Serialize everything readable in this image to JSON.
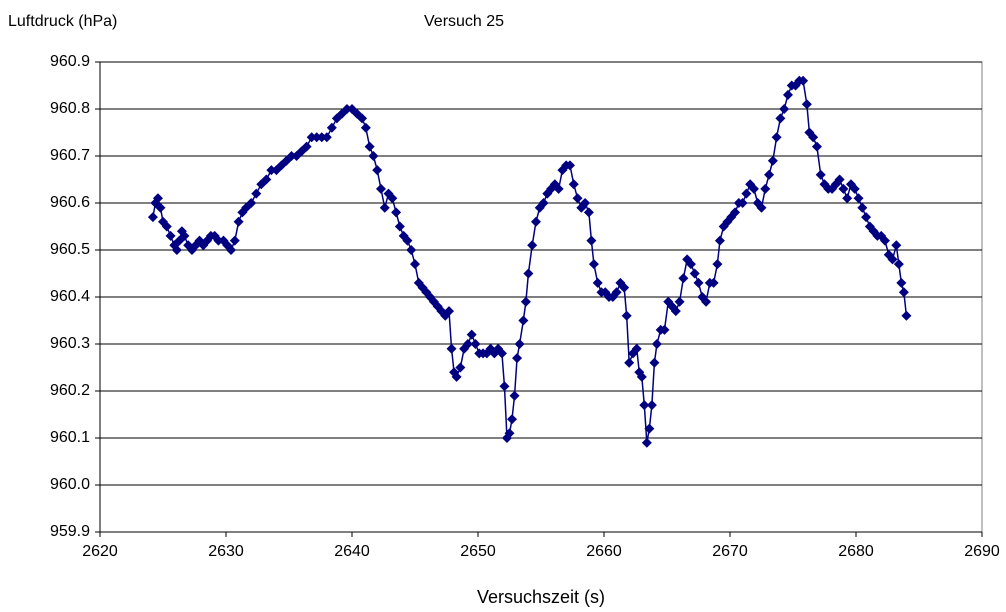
{
  "chart_data": {
    "type": "line",
    "title": "Versuch 25",
    "y_label": "Luftdruck (hPa)",
    "x_label": "Versuchszeit (s)",
    "xlim": [
      2620,
      2690
    ],
    "xticks": [
      2620,
      2630,
      2640,
      2650,
      2660,
      2670,
      2680,
      2690
    ],
    "ylim": [
      959.9,
      960.9
    ],
    "yticks": [
      959.9,
      {
        "value": 960,
        "label": "960.0"
      },
      960.1,
      960.2,
      960.3,
      960.4,
      960.5,
      960.6,
      960.7,
      960.8,
      960.9
    ],
    "grid": true,
    "marker": "diamond",
    "x": [
      2624.2,
      2624.4,
      2624.6,
      2624.8,
      2625.0,
      2625.3,
      2625.6,
      2625.9,
      2626.1,
      2626.3,
      2626.5,
      2626.7,
      2627.0,
      2627.3,
      2627.6,
      2627.9,
      2628.2,
      2628.5,
      2628.8,
      2629.1,
      2629.4,
      2629.8,
      2630.1,
      2630.4,
      2630.7,
      2631.0,
      2631.3,
      2631.6,
      2632.0,
      2632.4,
      2632.8,
      2633.2,
      2633.6,
      2634.0,
      2634.4,
      2634.8,
      2635.2,
      2635.6,
      2636.0,
      2636.4,
      2636.8,
      2637.2,
      2637.6,
      2638.0,
      2638.4,
      2638.8,
      2639.2,
      2639.6,
      2640.0,
      2640.4,
      2640.8,
      2641.1,
      2641.4,
      2641.7,
      2642.0,
      2642.3,
      2642.6,
      2642.9,
      2643.2,
      2643.5,
      2643.8,
      2644.1,
      2644.4,
      2644.7,
      2645.0,
      2645.3,
      2645.6,
      2645.9,
      2646.2,
      2646.5,
      2646.8,
      2647.1,
      2647.4,
      2647.7,
      2647.9,
      2648.1,
      2648.3,
      2648.6,
      2648.9,
      2649.2,
      2649.5,
      2649.8,
      2650.1,
      2650.4,
      2650.7,
      2651.0,
      2651.3,
      2651.6,
      2651.9,
      2652.1,
      2652.3,
      2652.5,
      2652.7,
      2652.9,
      2653.1,
      2653.3,
      2653.6,
      2653.8,
      2654.0,
      2654.3,
      2654.6,
      2654.9,
      2655.2,
      2655.5,
      2655.8,
      2656.1,
      2656.4,
      2656.7,
      2657.0,
      2657.3,
      2657.6,
      2657.9,
      2658.2,
      2658.5,
      2658.8,
      2659.0,
      2659.2,
      2659.5,
      2659.8,
      2660.1,
      2660.4,
      2660.7,
      2661.0,
      2661.3,
      2661.6,
      2661.8,
      2662.0,
      2662.3,
      2662.6,
      2662.8,
      2663.0,
      2663.2,
      2663.4,
      2663.6,
      2663.8,
      2664.0,
      2664.2,
      2664.5,
      2664.8,
      2665.1,
      2665.4,
      2665.7,
      2666.0,
      2666.3,
      2666.6,
      2666.9,
      2667.2,
      2667.5,
      2667.8,
      2668.1,
      2668.4,
      2668.7,
      2669.0,
      2669.2,
      2669.5,
      2669.8,
      2670.1,
      2670.4,
      2670.7,
      2671.0,
      2671.3,
      2671.6,
      2671.9,
      2672.2,
      2672.5,
      2672.8,
      2673.1,
      2673.4,
      2673.7,
      2674.0,
      2674.3,
      2674.6,
      2674.9,
      2675.2,
      2675.5,
      2675.8,
      2676.1,
      2676.3,
      2676.6,
      2676.9,
      2677.2,
      2677.5,
      2677.8,
      2678.1,
      2678.4,
      2678.7,
      2679.0,
      2679.3,
      2679.6,
      2679.9,
      2680.2,
      2680.5,
      2680.8,
      2681.1,
      2681.4,
      2681.7,
      2682.0,
      2682.3,
      2682.6,
      2682.9,
      2683.2,
      2683.4,
      2683.6,
      2683.8,
      2684.0
    ],
    "series": [
      {
        "name": "Luftdruck",
        "color": "#000080",
        "values": [
          960.57,
          960.6,
          960.61,
          960.59,
          960.56,
          960.55,
          960.53,
          960.51,
          960.5,
          960.52,
          960.54,
          960.53,
          960.51,
          960.5,
          960.51,
          960.52,
          960.51,
          960.52,
          960.53,
          960.53,
          960.52,
          960.52,
          960.51,
          960.5,
          960.52,
          960.56,
          960.58,
          960.59,
          960.6,
          960.62,
          960.64,
          960.65,
          960.67,
          960.67,
          960.68,
          960.69,
          960.7,
          960.7,
          960.71,
          960.72,
          960.74,
          960.74,
          960.74,
          960.74,
          960.76,
          960.78,
          960.79,
          960.8,
          960.8,
          960.79,
          960.78,
          960.76,
          960.72,
          960.7,
          960.67,
          960.63,
          960.59,
          960.62,
          960.61,
          960.58,
          960.55,
          960.53,
          960.52,
          960.5,
          960.47,
          960.43,
          960.42,
          960.41,
          960.4,
          960.39,
          960.38,
          960.37,
          960.36,
          960.37,
          960.29,
          960.24,
          960.23,
          960.25,
          960.29,
          960.3,
          960.32,
          960.3,
          960.28,
          960.28,
          960.28,
          960.29,
          960.28,
          960.29,
          960.28,
          960.21,
          960.1,
          960.11,
          960.14,
          960.19,
          960.27,
          960.3,
          960.35,
          960.39,
          960.45,
          960.51,
          960.56,
          960.59,
          960.6,
          960.62,
          960.63,
          960.64,
          960.63,
          960.67,
          960.68,
          960.68,
          960.64,
          960.61,
          960.59,
          960.6,
          960.58,
          960.52,
          960.47,
          960.43,
          960.41,
          960.41,
          960.4,
          960.4,
          960.41,
          960.43,
          960.42,
          960.36,
          960.26,
          960.28,
          960.29,
          960.24,
          960.23,
          960.17,
          960.09,
          960.12,
          960.17,
          960.26,
          960.3,
          960.33,
          960.33,
          960.39,
          960.38,
          960.37,
          960.39,
          960.44,
          960.48,
          960.47,
          960.45,
          960.43,
          960.4,
          960.39,
          960.43,
          960.43,
          960.47,
          960.52,
          960.55,
          960.56,
          960.57,
          960.58,
          960.6,
          960.6,
          960.62,
          960.64,
          960.63,
          960.6,
          960.59,
          960.63,
          960.66,
          960.69,
          960.74,
          960.78,
          960.8,
          960.83,
          960.85,
          960.85,
          960.86,
          960.86,
          960.81,
          960.75,
          960.74,
          960.72,
          960.66,
          960.64,
          960.63,
          960.63,
          960.64,
          960.65,
          960.63,
          960.61,
          960.64,
          960.63,
          960.61,
          960.59,
          960.57,
          960.55,
          960.54,
          960.53,
          960.53,
          960.52,
          960.49,
          960.48,
          960.51,
          960.47,
          960.43,
          960.41,
          960.36
        ]
      }
    ]
  }
}
